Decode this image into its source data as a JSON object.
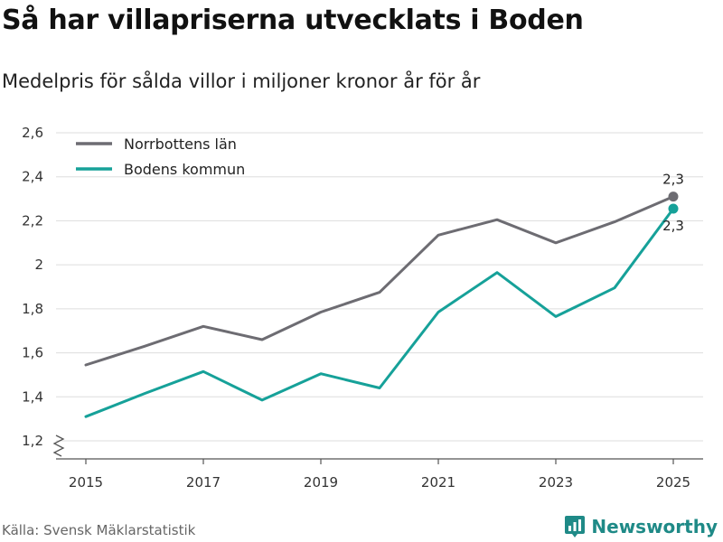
{
  "title": "Så har villapriserna utvecklats i Boden",
  "subtitle": "Medelpris för sålda villor i miljoner kronor år för år",
  "source": "Källa: Svensk Mäklarstatistik",
  "brand": "Newsworthy",
  "colors": {
    "norrbotten": "#6d6c72",
    "boden": "#16a199",
    "grid": "#dddddd",
    "brand": "#1f8a87"
  },
  "chart_data": {
    "type": "line",
    "x": [
      2015,
      2016,
      2017,
      2018,
      2019,
      2020,
      2021,
      2022,
      2023,
      2024,
      2025
    ],
    "x_ticks": [
      2015,
      2017,
      2019,
      2021,
      2023,
      2025
    ],
    "y_ticks": [
      1.2,
      1.4,
      1.6,
      1.8,
      2.0,
      2.2,
      2.4,
      2.6
    ],
    "y_tick_labels": [
      "1,2",
      "1,4",
      "1,6",
      "1,8",
      "2",
      "2,2",
      "2,4",
      "2,6"
    ],
    "ylim": [
      1.2,
      2.6
    ],
    "grid": true,
    "legend_position": "top-left",
    "series": [
      {
        "name": "Norrbottens län",
        "color": "#6d6c72",
        "values": [
          1.545,
          1.63,
          1.72,
          1.66,
          1.785,
          1.875,
          2.135,
          2.205,
          2.1,
          2.195,
          2.31
        ],
        "end_label": "2,3"
      },
      {
        "name": "Bodens kommun",
        "color": "#16a199",
        "values": [
          1.31,
          1.415,
          1.515,
          1.385,
          1.505,
          1.44,
          1.785,
          1.965,
          1.765,
          1.895,
          2.255
        ],
        "end_label": "2,3"
      }
    ]
  }
}
